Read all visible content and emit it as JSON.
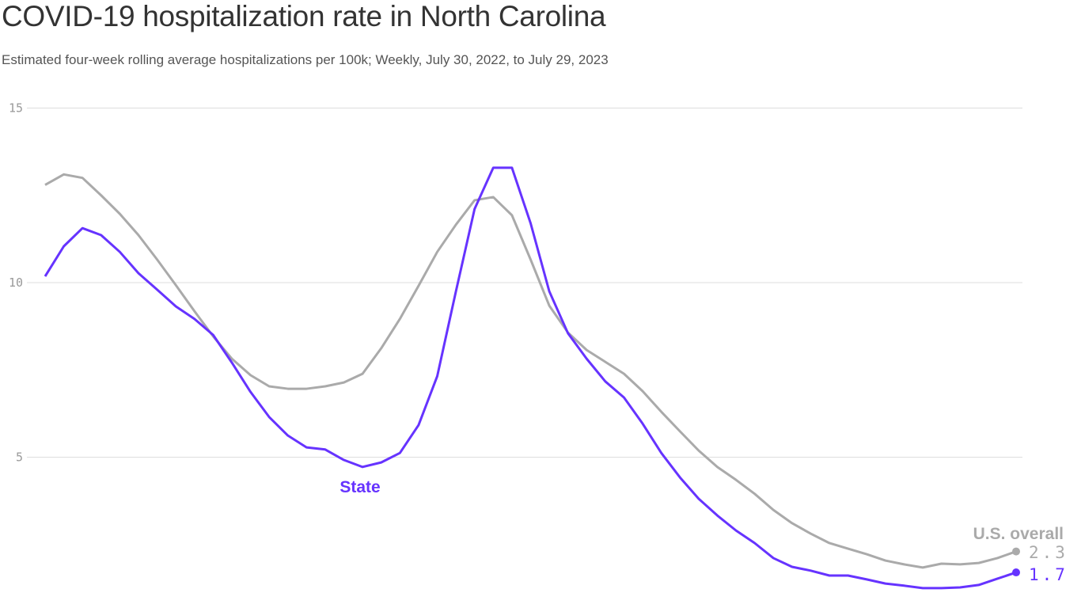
{
  "chart_data": {
    "type": "line",
    "title": "COVID-19 hospitalization rate in North Carolina",
    "subtitle": "Estimated four-week rolling average hospitalizations per 100k; Weekly, July 30, 2022, to July 29, 2023",
    "x_start": "2022-07-30",
    "x_end": "2023-07-29",
    "x_interval": "weekly",
    "ylim": [
      0,
      15
    ],
    "yticks": [
      "5",
      "10",
      "15"
    ],
    "grid": true,
    "series": [
      {
        "name": "U.S. overall",
        "color": "#aaaaaa",
        "end_label": "2.3",
        "values": [
          12.8,
          13.1,
          13.0,
          12.5,
          11.97,
          11.36,
          10.66,
          9.93,
          9.18,
          8.46,
          7.82,
          7.35,
          7.03,
          6.96,
          6.96,
          7.03,
          7.14,
          7.39,
          8.12,
          8.96,
          9.91,
          10.88,
          11.66,
          12.36,
          12.45,
          11.93,
          10.66,
          9.34,
          8.57,
          8.07,
          7.73,
          7.39,
          6.89,
          6.3,
          5.74,
          5.19,
          4.72,
          4.35,
          3.95,
          3.49,
          3.11,
          2.81,
          2.54,
          2.38,
          2.22,
          2.04,
          1.93,
          1.84,
          1.95,
          1.93,
          1.97,
          2.11,
          2.3
        ]
      },
      {
        "name": "State",
        "color": "#6633ff",
        "end_label": "1.7",
        "values": [
          10.18,
          11.04,
          11.56,
          11.36,
          10.88,
          10.27,
          9.8,
          9.32,
          8.96,
          8.5,
          7.71,
          6.87,
          6.15,
          5.62,
          5.28,
          5.22,
          4.92,
          4.72,
          4.85,
          5.12,
          5.92,
          7.32,
          9.75,
          12.11,
          13.29,
          13.29,
          11.7,
          9.75,
          8.55,
          7.82,
          7.17,
          6.71,
          5.96,
          5.12,
          4.42,
          3.81,
          3.33,
          2.9,
          2.54,
          2.11,
          1.86,
          1.75,
          1.61,
          1.61,
          1.5,
          1.38,
          1.32,
          1.25,
          1.25,
          1.27,
          1.34,
          1.52,
          1.7
        ]
      }
    ]
  }
}
